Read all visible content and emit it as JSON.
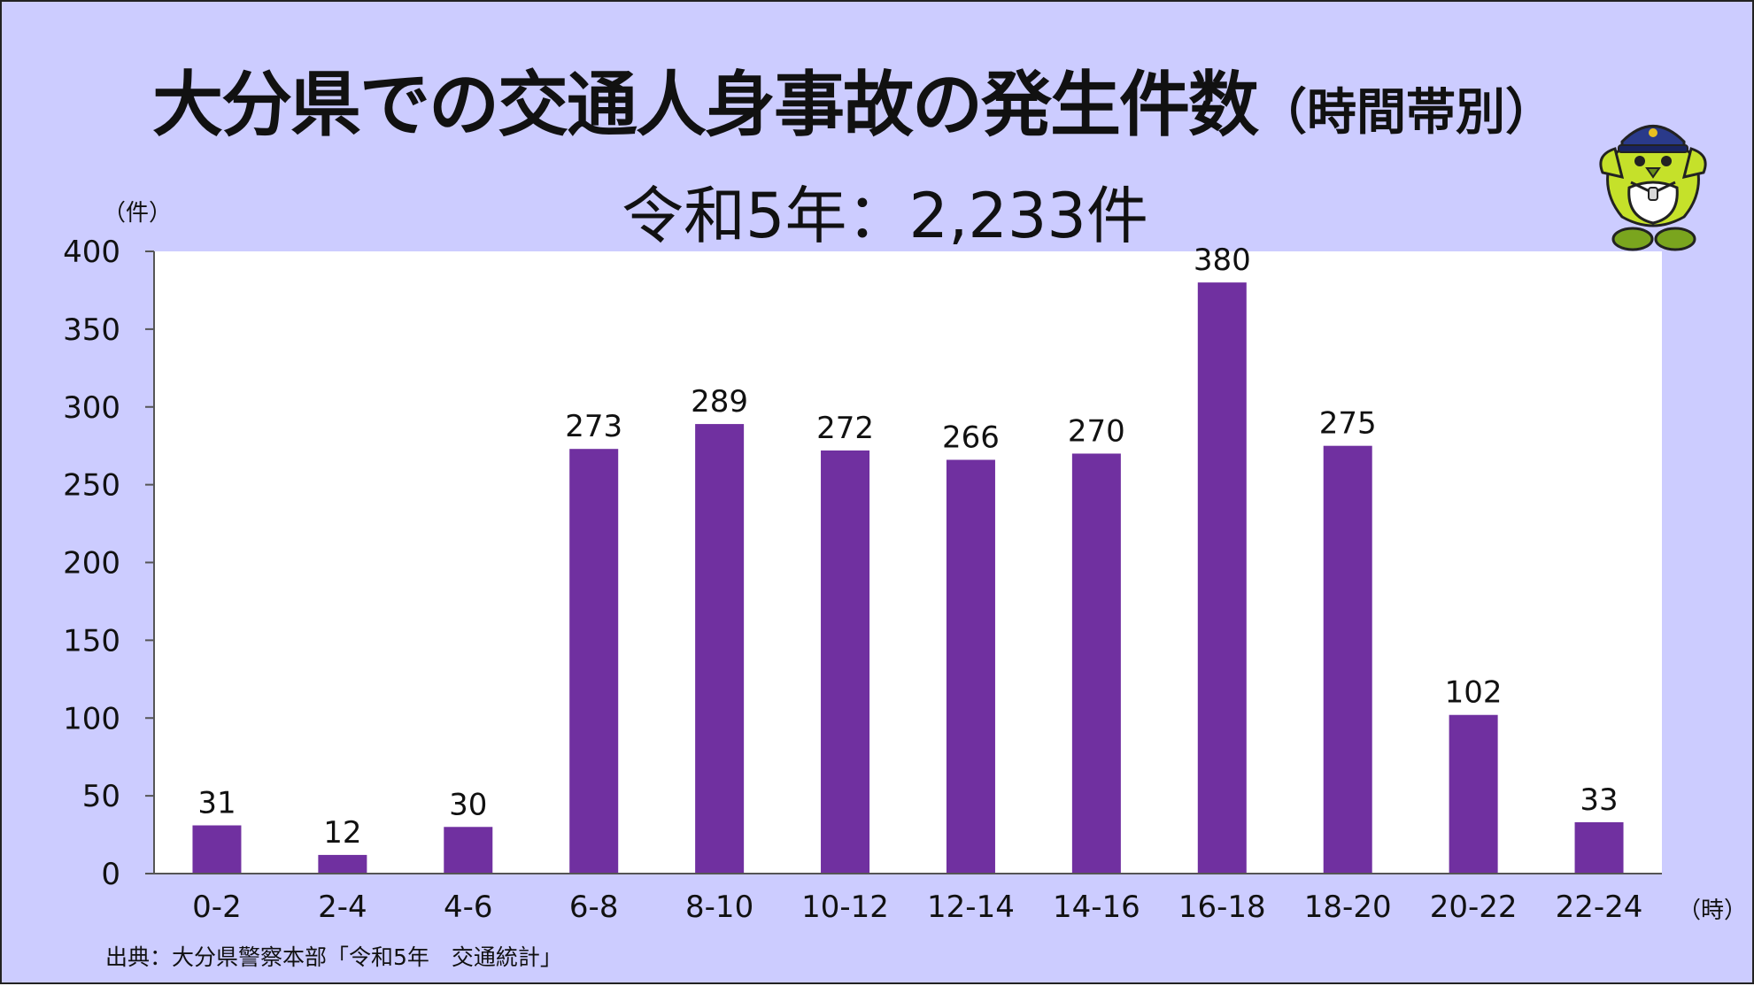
{
  "title": {
    "main": "大分県での交通人身事故の発生件数",
    "sub": "（時間帯別）"
  },
  "total_label": "令和5年：2,233件",
  "axis_units": {
    "y": "（件）",
    "x": "（時）"
  },
  "source": "出典：大分県警察本部「令和5年　交通統計」",
  "mascot": {
    "icon": "police-bird-mascot-icon"
  },
  "colors": {
    "background": "#ccccff",
    "plot": "#ffffff",
    "bar": "#7030a0"
  },
  "chart_data": {
    "type": "bar",
    "title": "大分県での交通人身事故の発生件数（時間帯別）",
    "subtitle": "令和5年：2,233件",
    "xlabel": "（時）",
    "ylabel": "（件）",
    "categories": [
      "0-2",
      "2-4",
      "4-6",
      "6-8",
      "8-10",
      "10-12",
      "12-14",
      "14-16",
      "16-18",
      "18-20",
      "20-22",
      "22-24"
    ],
    "values": [
      31,
      12,
      30,
      273,
      289,
      272,
      266,
      270,
      380,
      275,
      102,
      33
    ],
    "ylim": [
      0,
      400
    ],
    "yticks": [
      0,
      50,
      100,
      150,
      200,
      250,
      300,
      350,
      400
    ],
    "grid": false,
    "legend": "none",
    "data_labels": true
  }
}
